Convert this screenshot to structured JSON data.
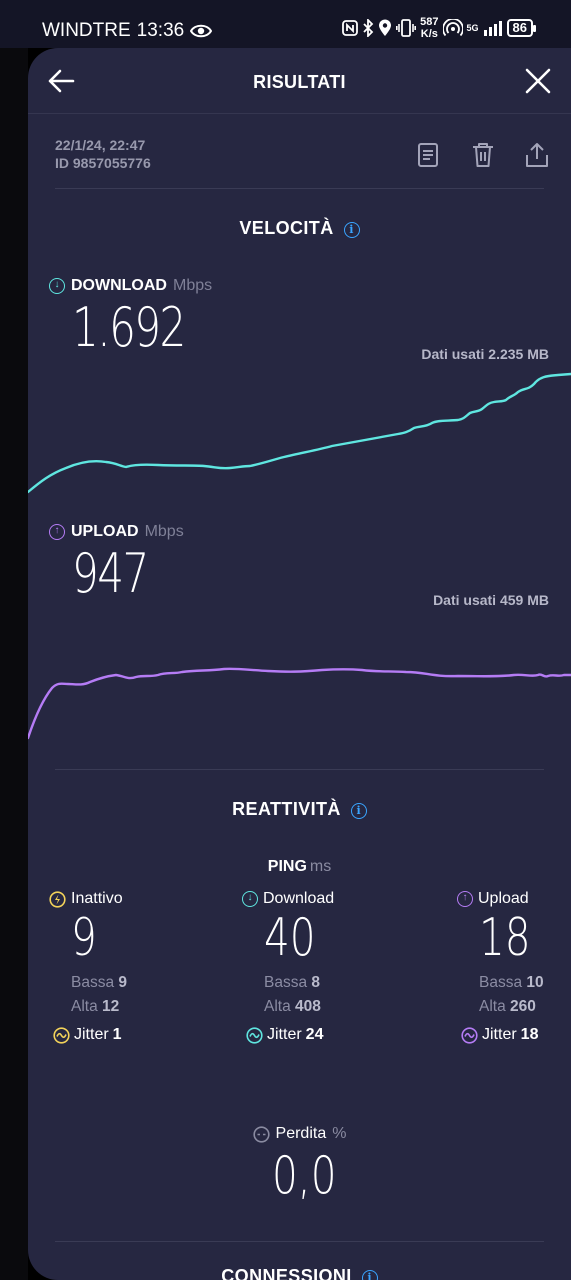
{
  "status_bar": {
    "carrier": "WINDTRE",
    "time": "13:36",
    "net_speed_value": "587",
    "net_speed_unit": "K/s",
    "network": "5G",
    "battery": "86"
  },
  "header": {
    "title": "RISULTATI"
  },
  "test": {
    "date": "22/1/24, 22:47",
    "id": "ID 9857055776"
  },
  "speed": {
    "section_title": "VELOCITÀ",
    "download": {
      "label": "DOWNLOAD",
      "unit": "Mbps",
      "value": "1.692",
      "data_used": "Dati usati 2.235 MB",
      "color": "#5fe6e0"
    },
    "upload": {
      "label": "UPLOAD",
      "unit": "Mbps",
      "value": "947",
      "data_used": "Dati usati 459 MB",
      "color": "#b57cf5"
    }
  },
  "responsiveness": {
    "section_title": "REATTIVITÀ",
    "ping_label": "PING",
    "ping_unit": "ms",
    "idle": {
      "label": "Inattivo",
      "value": "9",
      "low_label": "Bassa",
      "low": "9",
      "high_label": "Alta",
      "high": "12",
      "jitter_label": "Jitter",
      "jitter": "1",
      "color": "#f3d35a"
    },
    "download": {
      "label": "Download",
      "value": "40",
      "low_label": "Bassa",
      "low": "8",
      "high_label": "Alta",
      "high": "408",
      "jitter_label": "Jitter",
      "jitter": "24",
      "color": "#5fe6e0"
    },
    "upload": {
      "label": "Upload",
      "value": "18",
      "low_label": "Bassa",
      "low": "10",
      "high_label": "Alta",
      "high": "260",
      "jitter_label": "Jitter",
      "jitter": "18",
      "color": "#b57cf5"
    },
    "loss_label": "Perdita",
    "loss_unit": "%",
    "loss_value": "0,0"
  },
  "connections": {
    "section_title": "CONNESSIONI"
  },
  "icons": {
    "back": "arrow-left-icon",
    "close": "close-icon",
    "report": "document-icon",
    "delete": "trash-icon",
    "share": "share-icon"
  }
}
